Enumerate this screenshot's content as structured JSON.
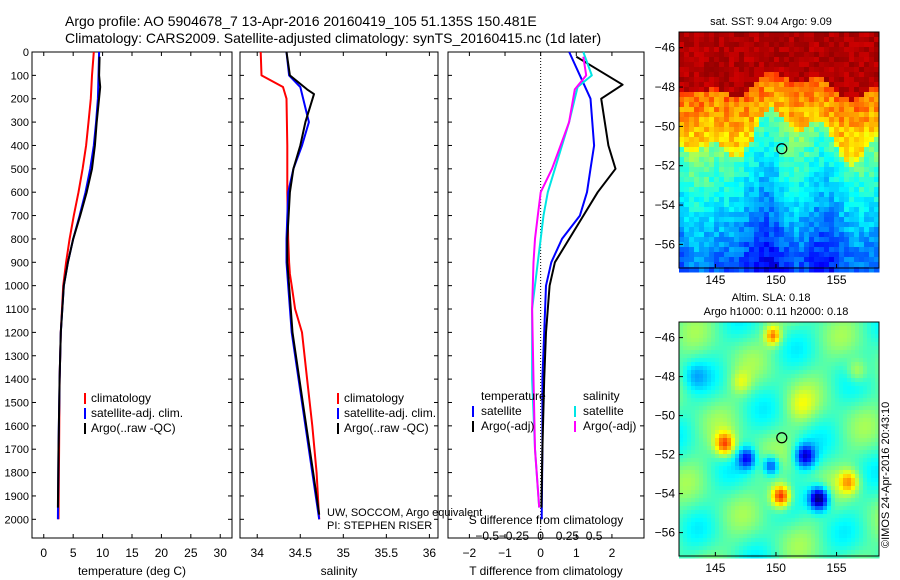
{
  "header": {
    "title_line1": "Argo profile: AO 5904678_7 13-Apr-2016 20160419_105 51.135S 150.481E",
    "title_line2": "Climatology: CARS2009. Satellite-adjusted climatology: synTS_20160415.nc (1d later)"
  },
  "colors": {
    "climatology": "#ff0000",
    "satellite": "#0000ff",
    "argo": "#000000",
    "salinity_satellite": "#00e5e5",
    "salinity_argo": "#ff00ff"
  },
  "chart_data": [
    {
      "type": "line",
      "name": "temperature-panel",
      "xlabel": "temperature (deg C)",
      "ylabel": "",
      "xlim": [
        -2,
        32
      ],
      "ylim": [
        2080,
        0
      ],
      "xticks": [
        0,
        5,
        10,
        15,
        20,
        25,
        30
      ],
      "yticks": [
        0,
        100,
        200,
        300,
        400,
        500,
        600,
        700,
        800,
        900,
        1000,
        1100,
        1200,
        1300,
        1400,
        1500,
        1600,
        1700,
        1800,
        1900,
        2000
      ],
      "legend": [
        "climatology",
        "satellite-adj. clim.",
        "Argo(..raw -QC)"
      ],
      "series": [
        {
          "name": "climatology",
          "x": [
            8.5,
            8.2,
            8.0,
            7.6,
            7.2,
            6.6,
            5.9,
            5.1,
            4.4,
            3.8,
            3.3,
            2.9,
            2.7,
            2.6,
            2.5
          ],
          "y": [
            0,
            100,
            200,
            300,
            400,
            500,
            600,
            700,
            800,
            900,
            1000,
            1200,
            1400,
            1700,
            2000
          ]
        },
        {
          "name": "satellite-adj. clim.",
          "x": [
            9.4,
            9.3,
            9.2,
            8.9,
            8.5,
            7.9,
            7.1,
            6.1,
            5.0,
            4.1,
            3.4,
            2.9,
            2.7,
            2.5,
            2.4
          ],
          "y": [
            0,
            100,
            200,
            300,
            400,
            500,
            600,
            700,
            800,
            900,
            1000,
            1200,
            1400,
            1700,
            2000
          ]
        },
        {
          "name": "Argo(..raw -QC)",
          "x": [
            9.5,
            9.4,
            9.6,
            9.0,
            8.7,
            8.2,
            7.3,
            6.2,
            5.0,
            4.1,
            3.4,
            2.9,
            2.7,
            2.5,
            2.4
          ],
          "y": [
            20,
            100,
            150,
            300,
            400,
            500,
            600,
            700,
            800,
            900,
            1000,
            1200,
            1400,
            1700,
            1950
          ]
        }
      ]
    },
    {
      "type": "line",
      "name": "salinity-panel",
      "xlabel": "salinity",
      "xlim": [
        33.8,
        36.1
      ],
      "ylim": [
        2080,
        0
      ],
      "xticks": [
        34,
        34.5,
        35,
        35.5,
        36
      ],
      "legend": [
        "climatology",
        "satellite-adj. clim.",
        "Argo(..raw -QC)"
      ],
      "annotation_line1": "UW, SOCCOM, Argo equivalent",
      "annotation_line2": "PI: STEPHEN RISER",
      "series": [
        {
          "name": "climatology",
          "x": [
            34.04,
            34.05,
            34.3,
            34.34,
            34.35,
            34.35,
            34.36,
            34.37,
            34.38,
            34.4,
            34.44,
            34.52,
            34.58,
            34.64,
            34.69,
            34.72
          ],
          "y": [
            0,
            100,
            150,
            200,
            400,
            600,
            800,
            900,
            950,
            1000,
            1100,
            1200,
            1400,
            1600,
            1800,
            2000
          ]
        },
        {
          "name": "satellite-adj. clim.",
          "x": [
            34.34,
            34.37,
            34.5,
            34.6,
            34.52,
            34.42,
            34.36,
            34.34,
            34.34,
            34.36,
            34.4,
            34.52,
            34.64,
            34.72
          ],
          "y": [
            0,
            100,
            150,
            300,
            400,
            500,
            600,
            800,
            900,
            1000,
            1200,
            1500,
            1800,
            2000
          ]
        },
        {
          "name": "Argo(..raw -QC)",
          "x": [
            34.34,
            34.38,
            34.58,
            34.66,
            34.56,
            34.5,
            34.42,
            34.38,
            34.35,
            34.35,
            34.37,
            34.41,
            34.53,
            34.65,
            34.72
          ],
          "y": [
            0,
            100,
            160,
            180,
            300,
            400,
            500,
            600,
            800,
            900,
            1000,
            1200,
            1500,
            1800,
            1980
          ]
        }
      ]
    },
    {
      "type": "line",
      "name": "difference-panel",
      "xlabel": "T difference from climatology",
      "xlabel_top": "S difference from climatology",
      "xlim": [
        -2.6,
        2.9
      ],
      "ylim": [
        2080,
        0
      ],
      "xticks": [
        -2,
        -1,
        0,
        1,
        2
      ],
      "xticks_top": [
        -0.5,
        -0.25,
        0,
        0.25,
        0.5
      ],
      "legend_title_left": "temperature",
      "legend_title_right": "salinity",
      "legend": [
        "satellite",
        "Argo(-adj)",
        "satellite",
        "Argo(-adj)"
      ],
      "series": [
        {
          "name": "temperature satellite",
          "x": [
            0.8,
            1.1,
            1.4,
            1.45,
            1.5,
            1.4,
            1.3,
            1.1,
            0.6,
            0.3,
            0.15,
            0.1,
            0.05,
            0.05,
            0.03
          ],
          "y": [
            0,
            100,
            200,
            300,
            400,
            500,
            600,
            700,
            800,
            900,
            1000,
            1200,
            1400,
            1700,
            2000
          ]
        },
        {
          "name": "temperature Argo(-adj)",
          "x": [
            1.0,
            2.3,
            1.7,
            1.8,
            1.9,
            2.1,
            1.6,
            1.2,
            0.8,
            0.4,
            0.25,
            0.15,
            0.1,
            0.05,
            0.02
          ],
          "y": [
            20,
            140,
            200,
            300,
            400,
            500,
            600,
            700,
            800,
            900,
            1000,
            1200,
            1400,
            1700,
            1950
          ]
        },
        {
          "name": "salinity satellite",
          "x": [
            0.3,
            0.36,
            0.26,
            0.2,
            0.15,
            0.1,
            0.05,
            0.02,
            0.0,
            -0.02,
            -0.06,
            -0.06,
            -0.04,
            -0.01
          ],
          "y": [
            0,
            100,
            150,
            300,
            400,
            500,
            600,
            700,
            800,
            900,
            1100,
            1400,
            1700,
            1950
          ]
        },
        {
          "name": "salinity Argo(-adj)",
          "x": [
            0.3,
            0.32,
            0.24,
            0.2,
            0.14,
            0.08,
            0.0,
            -0.02,
            -0.04,
            -0.05,
            -0.06,
            -0.05,
            -0.04,
            -0.01
          ],
          "y": [
            20,
            100,
            160,
            300,
            400,
            500,
            600,
            700,
            800,
            900,
            1100,
            1400,
            1700,
            1950
          ]
        }
      ]
    },
    {
      "type": "heatmap",
      "name": "sst-map",
      "title": "sat. SST: 9.04  Argo: 9.09",
      "xlim": [
        142,
        158.5
      ],
      "ylim": [
        -57.2,
        -45.2
      ],
      "xticks": [
        145,
        150,
        155
      ],
      "yticks": [
        -46,
        -48,
        -50,
        -52,
        -54,
        -56
      ],
      "marker": {
        "lon": 150.481,
        "lat": -51.135
      }
    },
    {
      "type": "heatmap",
      "name": "sla-map",
      "title": "Altim. SLA: 0.18",
      "subtitle": "Argo h1000: 0.11 h2000: 0.18",
      "xlim": [
        142,
        158.5
      ],
      "ylim": [
        -57.2,
        -45.2
      ],
      "xticks": [
        145,
        150,
        155
      ],
      "yticks": [
        -46,
        -48,
        -50,
        -52,
        -54,
        -56
      ],
      "marker": {
        "lon": 150.481,
        "lat": -51.135
      },
      "side_label": "©IMOS 24-Apr-2016 20:43:10"
    }
  ]
}
